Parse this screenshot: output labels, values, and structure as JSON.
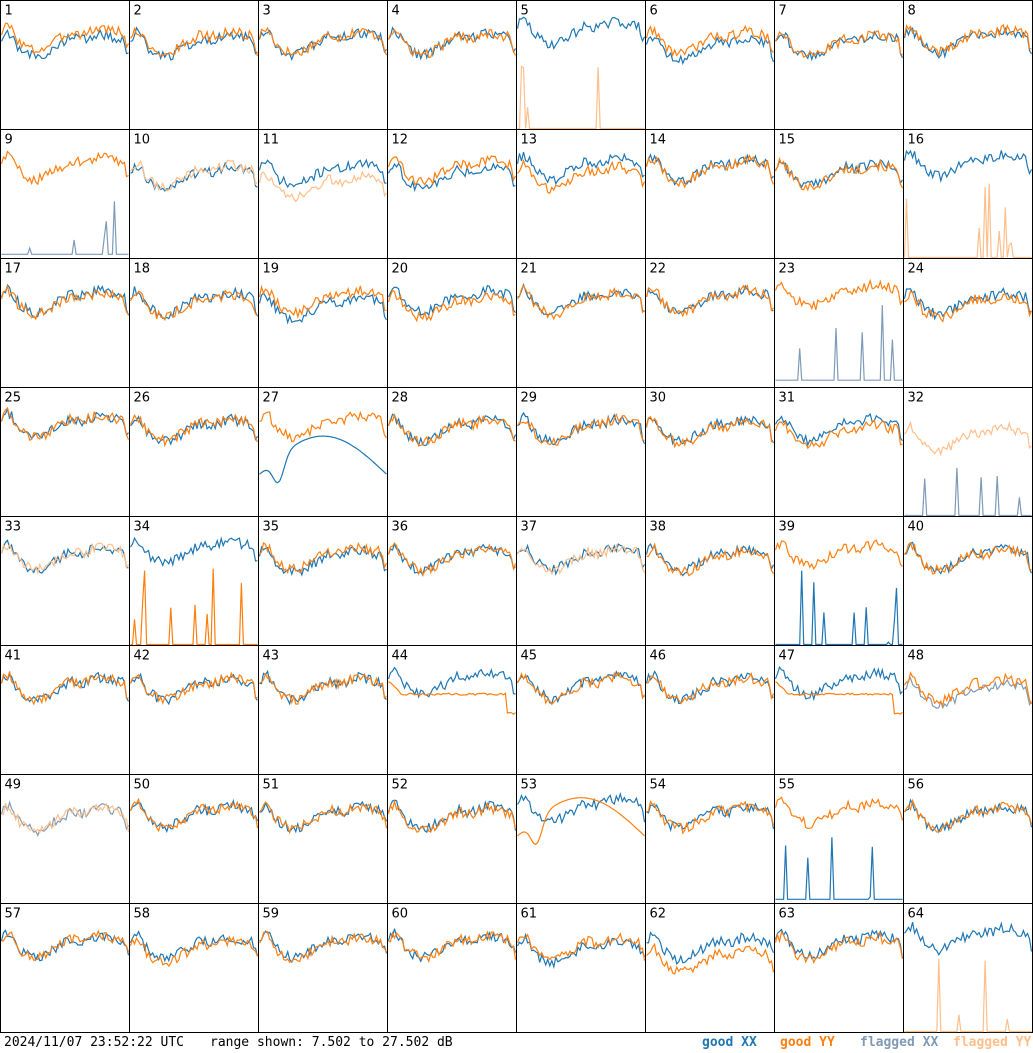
{
  "colors": {
    "good_xx": "#1f77b4",
    "good_yy": "#ff7f0e",
    "flagged_xx": "#7f9bb8",
    "flagged_yy": "#ffbf8a",
    "border": "#000000"
  },
  "footer": {
    "timestamp": "2024/11/07 23:52:22 UTC",
    "range_text": "range shown: 7.502 to 27.502 dB"
  },
  "legend": {
    "good_xx": "good XX",
    "good_yy": "good YY",
    "flagged_xx": "flagged XX",
    "flagged_yy": "flagged YY"
  },
  "chart_data": {
    "type": "line",
    "grid": "8x8",
    "y_range_db": [
      7.502,
      27.502
    ],
    "panels": [
      {
        "label": "1",
        "xx": "good",
        "yy": "good",
        "xx_level": 20.5,
        "yy_level": 21.5
      },
      {
        "label": "2",
        "xx": "good",
        "yy": "good",
        "xx_level": 20.5,
        "yy_level": 21.0
      },
      {
        "label": "3",
        "xx": "good",
        "yy": "good",
        "xx_level": 20.8,
        "yy_level": 21.0
      },
      {
        "label": "4",
        "xx": "good",
        "yy": "good",
        "xx_level": 20.8,
        "yy_level": 20.8
      },
      {
        "label": "5",
        "xx": "good",
        "yy": "flagged",
        "xx_level": 22.5,
        "yy_level": 9.0,
        "yy_shape": "dropout"
      },
      {
        "label": "6",
        "xx": "good",
        "yy": "good",
        "xx_level": 20.0,
        "yy_level": 21.0
      },
      {
        "label": "7",
        "xx": "good",
        "yy": "good",
        "xx_level": 20.5,
        "yy_level": 20.5
      },
      {
        "label": "8",
        "xx": "good",
        "yy": "good",
        "xx_level": 21.0,
        "yy_level": 21.3
      },
      {
        "label": "9",
        "xx": "flagged",
        "yy": "good",
        "xx_level": 9.5,
        "yy_level": 21.5,
        "xx_shape": "dropout"
      },
      {
        "label": "10",
        "xx": "good",
        "yy": "flagged",
        "xx_level": 20.0,
        "yy_level": 20.3
      },
      {
        "label": "11",
        "xx": "good",
        "yy": "flagged",
        "xx_level": 20.5,
        "yy_level": 18.5
      },
      {
        "label": "12",
        "xx": "good",
        "yy": "good",
        "xx_level": 20.0,
        "yy_level": 21.0
      },
      {
        "label": "13",
        "xx": "good",
        "yy": "good",
        "xx_level": 21.5,
        "yy_level": 20.0
      },
      {
        "label": "14",
        "xx": "good",
        "yy": "good",
        "xx_level": 21.2,
        "yy_level": 21.0
      },
      {
        "label": "15",
        "xx": "good",
        "yy": "good",
        "xx_level": 20.5,
        "yy_level": 20.3
      },
      {
        "label": "16",
        "xx": "good",
        "yy": "flagged",
        "xx_level": 22.0,
        "yy_level": 9.0,
        "yy_shape": "dropout"
      },
      {
        "label": "17",
        "xx": "good",
        "yy": "good",
        "xx_level": 20.8,
        "yy_level": 20.5
      },
      {
        "label": "18",
        "xx": "good",
        "yy": "good",
        "xx_level": 20.5,
        "yy_level": 20.2
      },
      {
        "label": "19",
        "xx": "good",
        "yy": "good",
        "xx_level": 19.8,
        "yy_level": 20.8
      },
      {
        "label": "20",
        "xx": "good",
        "yy": "good",
        "xx_level": 20.8,
        "yy_level": 20.0
      },
      {
        "label": "21",
        "xx": "good",
        "yy": "good",
        "xx_level": 20.8,
        "yy_level": 20.5
      },
      {
        "label": "22",
        "xx": "good",
        "yy": "good",
        "xx_level": 20.8,
        "yy_level": 20.8
      },
      {
        "label": "23",
        "xx": "flagged",
        "yy": "good",
        "xx_level": 10.0,
        "yy_level": 21.8,
        "xx_shape": "dropout"
      },
      {
        "label": "24",
        "xx": "good",
        "yy": "good",
        "xx_level": 20.5,
        "yy_level": 20.0
      },
      {
        "label": "25",
        "xx": "good",
        "yy": "good",
        "xx_level": 21.5,
        "yy_level": 21.5
      },
      {
        "label": "26",
        "xx": "good",
        "yy": "good",
        "xx_level": 20.8,
        "yy_level": 21.0
      },
      {
        "label": "27",
        "xx": "good",
        "yy": "good",
        "xx_level": 14.0,
        "yy_level": 21.5,
        "xx_shape": "arch"
      },
      {
        "label": "28",
        "xx": "good",
        "yy": "good",
        "xx_level": 20.8,
        "yy_level": 20.8
      },
      {
        "label": "29",
        "xx": "good",
        "yy": "good",
        "xx_level": 20.8,
        "yy_level": 20.8
      },
      {
        "label": "30",
        "xx": "good",
        "yy": "good",
        "xx_level": 20.8,
        "yy_level": 20.5
      },
      {
        "label": "31",
        "xx": "good",
        "yy": "good",
        "xx_level": 21.0,
        "yy_level": 20.0
      },
      {
        "label": "32",
        "xx": "flagged",
        "yy": "flagged",
        "xx_level": 8.0,
        "yy_level": 19.5,
        "xx_shape": "dropout"
      },
      {
        "label": "33",
        "xx": "good",
        "yy": "flagged",
        "xx_level": 21.0,
        "yy_level": 21.0
      },
      {
        "label": "34",
        "xx": "good",
        "yy": "good",
        "xx_level": 22.0,
        "yy_level": 9.0,
        "yy_shape": "dropout"
      },
      {
        "label": "35",
        "xx": "good",
        "yy": "good",
        "xx_level": 20.5,
        "yy_level": 21.0
      },
      {
        "label": "36",
        "xx": "good",
        "yy": "good",
        "xx_level": 20.8,
        "yy_level": 20.8
      },
      {
        "label": "37",
        "xx": "good",
        "yy": "flagged",
        "xx_level": 21.0,
        "yy_level": 20.8
      },
      {
        "label": "38",
        "xx": "good",
        "yy": "good",
        "xx_level": 20.8,
        "yy_level": 20.5
      },
      {
        "label": "39",
        "xx": "good",
        "yy": "good",
        "xx_level": 9.0,
        "yy_level": 21.5,
        "xx_shape": "dropout"
      },
      {
        "label": "40",
        "xx": "good",
        "yy": "good",
        "xx_level": 20.8,
        "yy_level": 20.8
      },
      {
        "label": "41",
        "xx": "good",
        "yy": "good",
        "xx_level": 20.8,
        "yy_level": 20.8
      },
      {
        "label": "42",
        "xx": "good",
        "yy": "good",
        "xx_level": 20.8,
        "yy_level": 20.8
      },
      {
        "label": "43",
        "xx": "good",
        "yy": "good",
        "xx_level": 20.8,
        "yy_level": 20.8
      },
      {
        "label": "44",
        "xx": "good",
        "yy": "good",
        "xx_level": 21.5,
        "yy_level": 20.0,
        "yy_shape": "flat"
      },
      {
        "label": "45",
        "xx": "good",
        "yy": "good",
        "xx_level": 21.0,
        "yy_level": 20.8
      },
      {
        "label": "46",
        "xx": "good",
        "yy": "good",
        "xx_level": 20.8,
        "yy_level": 20.8
      },
      {
        "label": "47",
        "xx": "good",
        "yy": "good",
        "xx_level": 21.5,
        "yy_level": 20.0,
        "yy_shape": "flat"
      },
      {
        "label": "48",
        "xx": "flagged",
        "yy": "good",
        "xx_level": 19.8,
        "yy_level": 20.5
      },
      {
        "label": "49",
        "xx": "flagged",
        "yy": "flagged",
        "xx_level": 20.5,
        "yy_level": 20.5
      },
      {
        "label": "50",
        "xx": "good",
        "yy": "good",
        "xx_level": 21.0,
        "yy_level": 21.0
      },
      {
        "label": "51",
        "xx": "good",
        "yy": "good",
        "xx_level": 20.8,
        "yy_level": 20.8
      },
      {
        "label": "52",
        "xx": "good",
        "yy": "good",
        "xx_level": 20.8,
        "yy_level": 20.5
      },
      {
        "label": "53",
        "xx": "good",
        "yy": "good",
        "xx_level": 22.0,
        "yy_level": 18.0,
        "yy_shape": "arch"
      },
      {
        "label": "54",
        "xx": "good",
        "yy": "good",
        "xx_level": 20.8,
        "yy_level": 20.8
      },
      {
        "label": "55",
        "xx": "good",
        "yy": "good",
        "xx_level": 9.5,
        "yy_level": 21.5,
        "xx_shape": "dropout"
      },
      {
        "label": "56",
        "xx": "good",
        "yy": "good",
        "xx_level": 20.8,
        "yy_level": 20.8
      },
      {
        "label": "57",
        "xx": "good",
        "yy": "good",
        "xx_level": 20.8,
        "yy_level": 20.8
      },
      {
        "label": "58",
        "xx": "good",
        "yy": "good",
        "xx_level": 20.5,
        "yy_level": 20.0
      },
      {
        "label": "59",
        "xx": "good",
        "yy": "good",
        "xx_level": 20.8,
        "yy_level": 20.5
      },
      {
        "label": "60",
        "xx": "good",
        "yy": "good",
        "xx_level": 20.8,
        "yy_level": 20.8
      },
      {
        "label": "61",
        "xx": "good",
        "yy": "good",
        "xx_level": 20.0,
        "yy_level": 20.5
      },
      {
        "label": "62",
        "xx": "good",
        "yy": "good",
        "xx_level": 20.5,
        "yy_level": 18.5
      },
      {
        "label": "63",
        "xx": "good",
        "yy": "good",
        "xx_level": 21.0,
        "yy_level": 20.5
      },
      {
        "label": "64",
        "xx": "good",
        "yy": "flagged",
        "xx_level": 22.0,
        "yy_level": 9.0,
        "yy_shape": "dropout"
      }
    ]
  }
}
